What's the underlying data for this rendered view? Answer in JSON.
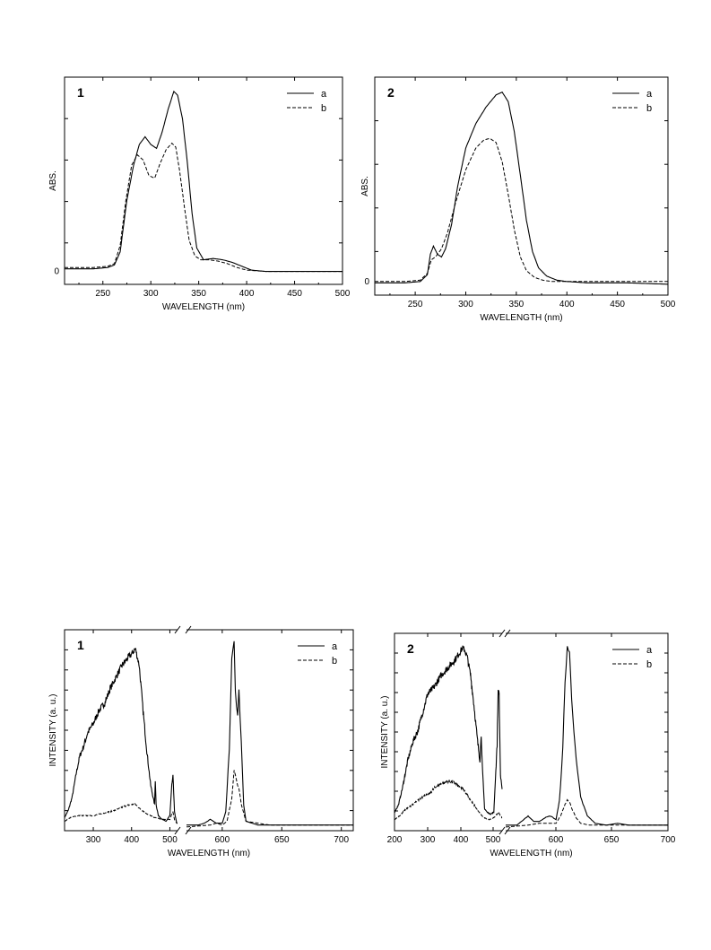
{
  "chart_data": [
    {
      "id": "abs-1",
      "type": "line",
      "panel_label": "1",
      "xlabel": "WAVELENGTH (nm)",
      "ylabel": "ABS.",
      "xlim": [
        210,
        500
      ],
      "ylim": [
        -0.1,
        1.5
      ],
      "xticks": [
        250,
        300,
        350,
        400,
        450,
        500
      ],
      "yticks": [
        0
      ],
      "legend_position": "top-right",
      "series": [
        {
          "name": "a",
          "style": "solid",
          "x": [
            210,
            240,
            255,
            262,
            268,
            275,
            282,
            288,
            294,
            300,
            306,
            312,
            318,
            324,
            328,
            333,
            338,
            343,
            348,
            355,
            365,
            375,
            385,
            395,
            405,
            420,
            460,
            500
          ],
          "y": [
            0.02,
            0.02,
            0.03,
            0.05,
            0.15,
            0.55,
            0.82,
            0.98,
            1.04,
            0.98,
            0.95,
            1.08,
            1.25,
            1.39,
            1.36,
            1.18,
            0.85,
            0.45,
            0.18,
            0.09,
            0.1,
            0.09,
            0.07,
            0.04,
            0.01,
            0.0,
            0.0,
            0.0
          ]
        },
        {
          "name": "b",
          "style": "dashed",
          "x": [
            210,
            240,
            255,
            262,
            268,
            274,
            280,
            286,
            292,
            298,
            304,
            310,
            316,
            322,
            326,
            330,
            335,
            340,
            346,
            352,
            360,
            370,
            380,
            390,
            400,
            420,
            460,
            500
          ],
          "y": [
            0.03,
            0.03,
            0.04,
            0.06,
            0.2,
            0.55,
            0.82,
            0.9,
            0.86,
            0.74,
            0.72,
            0.84,
            0.94,
            0.99,
            0.96,
            0.78,
            0.5,
            0.24,
            0.12,
            0.09,
            0.09,
            0.08,
            0.06,
            0.03,
            0.01,
            0.0,
            0.0,
            0.0
          ]
        }
      ]
    },
    {
      "id": "abs-2",
      "type": "line",
      "panel_label": "2",
      "xlabel": "WAVELENGTH (nm)",
      "ylabel": "ABS.",
      "xlim": [
        210,
        500
      ],
      "ylim": [
        -0.1,
        1.5
      ],
      "xticks": [
        250,
        300,
        350,
        400,
        450,
        500
      ],
      "yticks": [
        0
      ],
      "legend_position": "top-right",
      "series": [
        {
          "name": "a",
          "style": "solid",
          "x": [
            210,
            240,
            255,
            262,
            265,
            268,
            272,
            276,
            280,
            286,
            292,
            300,
            310,
            320,
            330,
            336,
            342,
            348,
            354,
            360,
            366,
            372,
            380,
            390,
            400,
            420,
            460,
            500
          ],
          "y": [
            -0.01,
            -0.01,
            0.0,
            0.05,
            0.2,
            0.26,
            0.2,
            0.18,
            0.24,
            0.42,
            0.7,
            0.98,
            1.16,
            1.28,
            1.37,
            1.39,
            1.32,
            1.1,
            0.78,
            0.45,
            0.22,
            0.1,
            0.04,
            0.01,
            0.0,
            -0.01,
            -0.01,
            -0.02
          ]
        },
        {
          "name": "b",
          "style": "dashed",
          "x": [
            210,
            240,
            255,
            262,
            266,
            270,
            276,
            282,
            290,
            300,
            310,
            318,
            324,
            330,
            336,
            342,
            348,
            354,
            360,
            368,
            376,
            385,
            400,
            420,
            460,
            500
          ],
          "y": [
            0.0,
            0.0,
            0.01,
            0.06,
            0.16,
            0.18,
            0.24,
            0.36,
            0.58,
            0.82,
            0.98,
            1.04,
            1.05,
            1.02,
            0.88,
            0.64,
            0.38,
            0.18,
            0.08,
            0.03,
            0.01,
            0.0,
            0.0,
            0.0,
            0.0,
            0.0
          ]
        }
      ]
    },
    {
      "id": "em-1",
      "type": "line",
      "panel_label": "1",
      "xlabel": "WAVELENGTH (nm)",
      "ylabel": "INTENSITY (a. u.)",
      "xlim": [
        225,
        710
      ],
      "ylim": [
        -0.02,
        1.05
      ],
      "xticks": [
        300,
        400,
        500,
        600,
        650,
        700
      ],
      "yticks": [],
      "axis_break": [
        520,
        570
      ],
      "legend_position": "top-right",
      "series": [
        {
          "name": "a",
          "style": "solid",
          "noisy": true,
          "x": [
            225,
            235,
            245,
            255,
            265,
            275,
            285,
            300,
            315,
            330,
            345,
            360,
            375,
            390,
            400,
            410,
            420,
            430,
            440,
            450,
            460,
            462,
            464,
            470,
            480,
            490,
            500,
            505,
            508,
            512,
            518,
            520,
            570,
            580,
            585,
            590,
            595,
            600,
            603,
            606,
            608,
            610,
            611,
            613,
            614,
            616,
            618,
            620,
            630,
            650,
            700,
            710
          ],
          "y": [
            0.05,
            0.09,
            0.16,
            0.28,
            0.38,
            0.43,
            0.5,
            0.55,
            0.62,
            0.66,
            0.74,
            0.8,
            0.86,
            0.9,
            0.92,
            0.95,
            0.86,
            0.62,
            0.4,
            0.22,
            0.12,
            0.25,
            0.12,
            0.06,
            0.04,
            0.03,
            0.06,
            0.22,
            0.28,
            0.08,
            0.02,
            0.02,
            0.01,
            0.01,
            0.02,
            0.04,
            0.02,
            0.02,
            0.08,
            0.42,
            0.9,
            1.0,
            0.72,
            0.58,
            0.72,
            0.45,
            0.12,
            0.03,
            0.01,
            0.01,
            0.01,
            0.01
          ]
        },
        {
          "name": "b",
          "style": "dashed",
          "noisy": true,
          "x": [
            225,
            240,
            260,
            280,
            300,
            320,
            340,
            360,
            380,
            400,
            410,
            420,
            440,
            460,
            480,
            500,
            505,
            508,
            512,
            518,
            520,
            570,
            590,
            595,
            600,
            604,
            608,
            610,
            612,
            614,
            616,
            620,
            640,
            700,
            710
          ],
          "y": [
            0.03,
            0.05,
            0.06,
            0.06,
            0.06,
            0.07,
            0.08,
            0.09,
            0.11,
            0.12,
            0.12,
            0.1,
            0.07,
            0.05,
            0.04,
            0.04,
            0.07,
            0.08,
            0.04,
            0.02,
            0.02,
            0.0,
            0.01,
            0.02,
            0.01,
            0.03,
            0.15,
            0.3,
            0.24,
            0.2,
            0.12,
            0.03,
            0.01,
            0.01,
            0.01
          ]
        }
      ]
    },
    {
      "id": "em-2",
      "type": "line",
      "panel_label": "2",
      "xlabel": "WAVELENGTH (nm)",
      "ylabel": "INTENSITY (a. u.)",
      "xlim": [
        200,
        700
      ],
      "ylim": [
        -0.02,
        1.05
      ],
      "xticks": [
        200,
        250,
        300,
        350,
        400,
        450,
        500,
        550,
        600,
        650,
        700
      ],
      "ticklabels": [
        "200",
        "300",
        "400",
        "500",
        "600",
        "650",
        "700"
      ],
      "yticks": [],
      "axis_break": [
        525,
        555
      ],
      "legend_position": "top-right",
      "series": [
        {
          "name": "a",
          "style": "solid",
          "noisy": true,
          "x": [
            200,
            212,
            225,
            240,
            255,
            270,
            285,
            300,
            320,
            340,
            360,
            380,
            395,
            405,
            412,
            420,
            430,
            440,
            450,
            458,
            462,
            466,
            472,
            480,
            490,
            500,
            510,
            513,
            516,
            520,
            525,
            555,
            565,
            575,
            580,
            585,
            590,
            595,
            600,
            603,
            606,
            608,
            610,
            612,
            614,
            618,
            622,
            628,
            635,
            645,
            655,
            665,
            700
          ],
          "y": [
            0.08,
            0.12,
            0.22,
            0.36,
            0.46,
            0.52,
            0.62,
            0.72,
            0.76,
            0.82,
            0.86,
            0.9,
            0.94,
            0.97,
            0.96,
            0.92,
            0.82,
            0.66,
            0.48,
            0.36,
            0.5,
            0.3,
            0.1,
            0.08,
            0.07,
            0.08,
            0.45,
            0.74,
            0.72,
            0.28,
            0.2,
            0.01,
            0.01,
            0.06,
            0.03,
            0.03,
            0.05,
            0.06,
            0.04,
            0.14,
            0.42,
            0.78,
            0.98,
            0.94,
            0.7,
            0.36,
            0.16,
            0.06,
            0.02,
            0.01,
            0.02,
            0.01,
            0.01
          ]
        },
        {
          "name": "b",
          "style": "dashed",
          "noisy": true,
          "x": [
            200,
            215,
            230,
            245,
            260,
            275,
            290,
            305,
            320,
            335,
            350,
            365,
            380,
            395,
            410,
            425,
            440,
            455,
            470,
            485,
            500,
            510,
            515,
            520,
            525,
            555,
            575,
            585,
            595,
            600,
            604,
            608,
            610,
            612,
            614,
            618,
            622,
            630,
            650,
            700
          ],
          "y": [
            0.04,
            0.06,
            0.09,
            0.11,
            0.13,
            0.15,
            0.17,
            0.18,
            0.21,
            0.23,
            0.24,
            0.25,
            0.24,
            0.22,
            0.2,
            0.16,
            0.12,
            0.08,
            0.05,
            0.04,
            0.05,
            0.07,
            0.08,
            0.06,
            0.05,
            0.0,
            0.01,
            0.02,
            0.02,
            0.02,
            0.06,
            0.12,
            0.15,
            0.14,
            0.1,
            0.05,
            0.02,
            0.01,
            0.01,
            0.01
          ]
        }
      ]
    }
  ]
}
